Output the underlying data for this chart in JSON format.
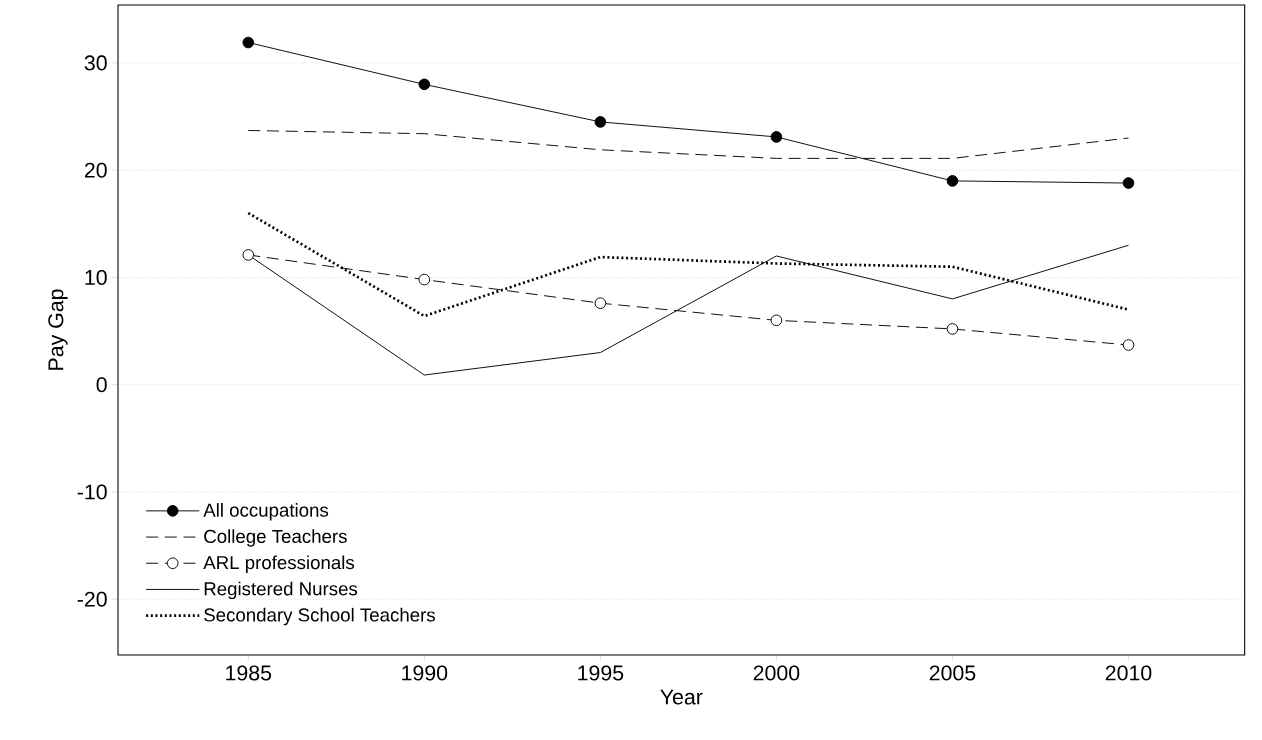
{
  "chart_data": {
    "type": "line",
    "xlabel": "Year",
    "ylabel": "Pay Gap",
    "x": [
      1985,
      1990,
      1995,
      2000,
      2005,
      2010
    ],
    "series": [
      {
        "name": "All occupations",
        "color": "#000000",
        "marker": "circle",
        "line_style": "solid",
        "values": [
          31.9,
          28.0,
          24.5,
          23.1,
          19.0,
          18.8
        ]
      },
      {
        "name": "College Teachers",
        "color": "#000000",
        "marker": "none",
        "line_style": "dashed",
        "values": [
          23.7,
          23.4,
          21.9,
          21.1,
          21.1,
          23.0
        ]
      },
      {
        "name": "ARL professionals",
        "color": "#000000",
        "marker": "circle",
        "line_style": "dashed",
        "values": [
          12.1,
          9.8,
          7.6,
          6.0,
          5.2,
          3.7
        ]
      },
      {
        "name": "Registered Nurses",
        "color": "#000000",
        "marker": "none",
        "line_style": "solid",
        "values": [
          12.1,
          0.9,
          3.0,
          12.0,
          8.0,
          13.0
        ]
      },
      {
        "name": "Secondary School Teachers",
        "color": "#000000",
        "marker": "none",
        "line_style": "dotted",
        "values": [
          16.0,
          6.4,
          11.9,
          11.3,
          11.0,
          7.0
        ]
      }
    ],
    "xlim": [
      1981.3,
      2013.3
    ],
    "ylim": [
      -25.2,
      35.4
    ],
    "xticks": [
      1985,
      1990,
      1995,
      2000,
      2005,
      2010
    ],
    "yticks": [
      -20,
      -10,
      0,
      10,
      20,
      30
    ],
    "grid": "y",
    "legend": "bottom left"
  }
}
